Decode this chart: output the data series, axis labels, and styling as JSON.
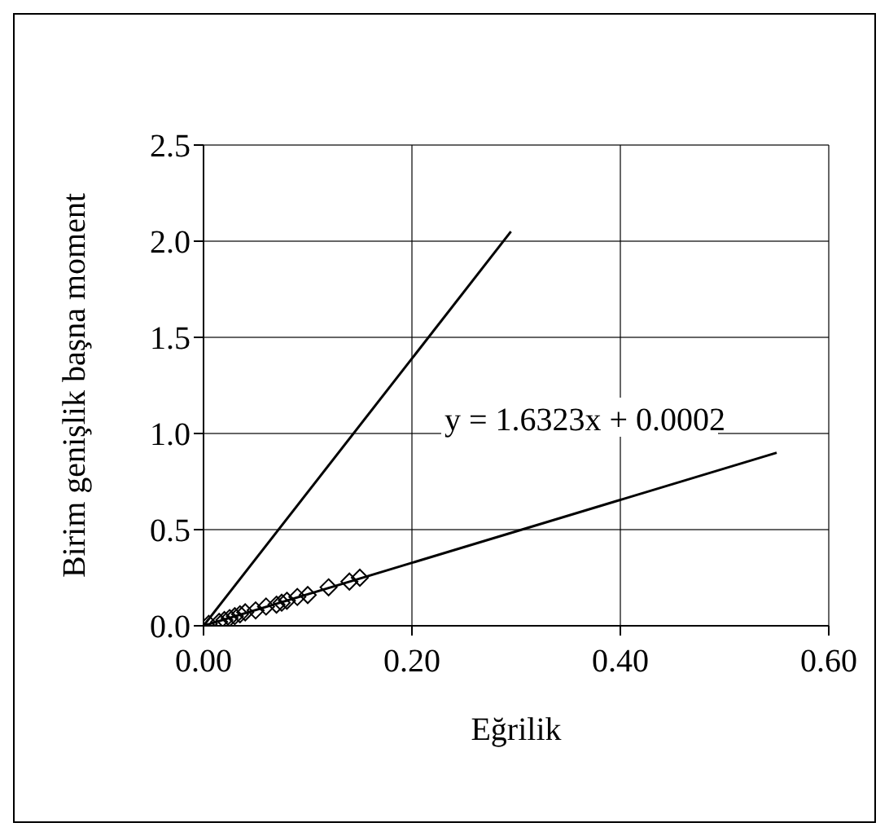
{
  "chart_data": {
    "type": "scatter",
    "xlabel": "Eğrilik",
    "ylabel": "Birim genişlik başna moment",
    "xlim": [
      0,
      0.6
    ],
    "xticks": [
      {
        "value": 0,
        "label": "0.00"
      },
      {
        "value": 0.2,
        "label": "0.20"
      },
      {
        "value": 0.4,
        "label": "0.40"
      },
      {
        "value": 0.6,
        "label": "0.60"
      }
    ],
    "ylim": [
      0,
      2.5
    ],
    "yticks": [
      {
        "value": 0,
        "label": "0.0"
      },
      {
        "value": 0.5,
        "label": "0.5"
      },
      {
        "value": 1,
        "label": "1.0"
      },
      {
        "value": 1.5,
        "label": "1.5"
      },
      {
        "value": 2,
        "label": "2.0"
      },
      {
        "value": 2.5,
        "label": "2.5"
      }
    ],
    "grid": true,
    "legend": false,
    "series": [
      {
        "color": "#000000",
        "marker": "diamond",
        "x": [
          0.005,
          0.015,
          0.02,
          0.025,
          0.03,
          0.035,
          0.04,
          0.05,
          0.06,
          0.07,
          0.075,
          0.08,
          0.09,
          0.1,
          0.12,
          0.14,
          0.15
        ],
        "values": [
          0.01,
          0.02,
          0.03,
          0.04,
          0.05,
          0.06,
          0.07,
          0.08,
          0.1,
          0.11,
          0.12,
          0.13,
          0.15,
          0.16,
          0.2,
          0.23,
          0.25
        ]
      },
      {
        "type": "line",
        "color": "#000000",
        "marker": "none",
        "x": [
          0,
          0.295
        ],
        "values": [
          0,
          2.05
        ]
      },
      {
        "type": "line",
        "color": "#000000",
        "marker": "none",
        "x": [
          0,
          0.55
        ],
        "values": [
          0,
          0.9
        ]
      }
    ],
    "annotations": [
      "y = 1.6323x + 0.0002"
    ]
  }
}
